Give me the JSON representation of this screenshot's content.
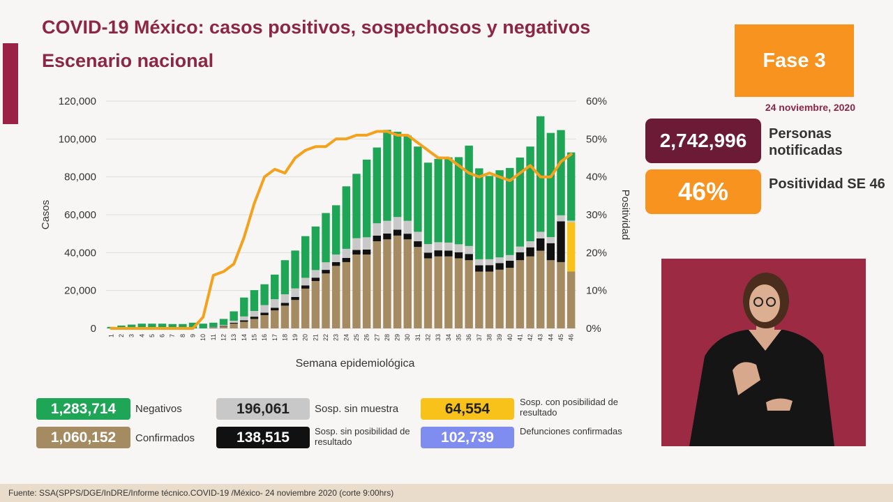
{
  "header": {
    "title": "COVID-19 México: casos positivos, sospechosos y negativos",
    "subtitle": "Escenario nacional",
    "phase": "Fase 3",
    "date": "24 noviembre, 2020"
  },
  "stats": {
    "notified_value": "2,742,996",
    "notified_label": "Personas notificadas",
    "positivity_value": "46%",
    "positivity_label": "Positividad SE 46"
  },
  "legend": {
    "negativos_value": "1,283,714",
    "negativos_label": "Negativos",
    "confirmados_value": "1,060,152",
    "confirmados_label": "Confirmados",
    "sin_muestra_value": "196,061",
    "sin_muestra_label": "Sosp. sin muestra",
    "sin_posibilidad_value": "138,515",
    "sin_posibilidad_label": "Sosp. sin posibilidad de resultado",
    "con_posibilidad_value": "64,554",
    "con_posibilidad_label": "Sosp. con posibilidad de resultado",
    "defunciones_value": "102,739",
    "defunciones_label": "Defunciones confirmadas"
  },
  "footer": "Fuente: SSA(SPPS/DGE/InDRE/Informe técnico.COVID-19 /México- 24 noviembre 2020 (corte 9:00hrs)",
  "colors": {
    "confirmados": "#a58b62",
    "sin_posibilidad": "#111111",
    "sin_muestra": "#c8c8c8",
    "negativos": "#1ea556",
    "con_posibilidad": "#f9c21a",
    "defunciones": "#7f8cf0",
    "positividad": "#f4a21e",
    "title": "#8c2645"
  },
  "chart_data": {
    "type": "bar",
    "stacked": true,
    "xlabel": "Semana epidemiológica",
    "ylabel": "Casos",
    "ylabel_right": "Positividad",
    "ylim": [
      0,
      120000
    ],
    "ylim_right": [
      0,
      60
    ],
    "yticks": [
      "0",
      "20,000",
      "40,000",
      "60,000",
      "80,000",
      "100,000",
      "120,000"
    ],
    "yticks_right": [
      "0%",
      "10%",
      "20%",
      "30%",
      "40%",
      "50%",
      "60%"
    ],
    "grid": true,
    "categories": [
      "1",
      "2",
      "3",
      "4",
      "5",
      "6",
      "7",
      "8",
      "9",
      "10",
      "11",
      "12",
      "13",
      "14",
      "15",
      "16",
      "17",
      "18",
      "19",
      "20",
      "21",
      "22",
      "23",
      "24",
      "25",
      "26",
      "27",
      "28",
      "29",
      "30",
      "31",
      "32",
      "33",
      "34",
      "35",
      "36",
      "37",
      "38",
      "39",
      "40",
      "41",
      "42",
      "43",
      "44",
      "45",
      "46"
    ],
    "series": [
      {
        "name": "Confirmados",
        "values": [
          0,
          0,
          0,
          0,
          0,
          0,
          0,
          0,
          0,
          0,
          300,
          1000,
          2500,
          3500,
          5000,
          7000,
          9500,
          12000,
          15000,
          21000,
          25000,
          29000,
          33000,
          35000,
          39000,
          39000,
          46000,
          47000,
          49000,
          47000,
          43000,
          37000,
          38000,
          38000,
          37000,
          36000,
          30000,
          30000,
          31000,
          32000,
          36000,
          38000,
          41000,
          36000,
          35000,
          30000
        ]
      },
      {
        "name": "Sosp. sin posibilidad de resultado",
        "values": [
          0,
          0,
          0,
          0,
          0,
          0,
          0,
          0,
          0,
          0,
          200,
          300,
          500,
          800,
          1200,
          1300,
          1400,
          1500,
          1600,
          1700,
          1800,
          1900,
          2000,
          2200,
          2400,
          2600,
          3000,
          3100,
          3100,
          3000,
          3000,
          3000,
          3200,
          3100,
          3200,
          3300,
          3300,
          3400,
          3500,
          3700,
          4200,
          4800,
          6500,
          9000,
          21500,
          0
        ]
      },
      {
        "name": "Sosp. con posibilidad de resultado",
        "values": [
          0,
          0,
          0,
          0,
          0,
          0,
          0,
          0,
          0,
          0,
          0,
          0,
          0,
          0,
          0,
          0,
          0,
          0,
          0,
          0,
          0,
          0,
          0,
          0,
          0,
          0,
          0,
          0,
          0,
          0,
          0,
          0,
          0,
          0,
          0,
          0,
          0,
          0,
          0,
          0,
          0,
          0,
          0,
          0,
          0,
          26000
        ]
      },
      {
        "name": "Sosp. sin muestra",
        "values": [
          0,
          0,
          0,
          0,
          0,
          0,
          0,
          0,
          0,
          0,
          200,
          500,
          1000,
          2000,
          3000,
          4000,
          4500,
          4500,
          4500,
          4000,
          4000,
          4000,
          4000,
          4800,
          6200,
          6500,
          6500,
          6700,
          6700,
          6800,
          5000,
          4500,
          4300,
          4200,
          4200,
          4200,
          3200,
          3100,
          3000,
          3000,
          3000,
          3200,
          3500,
          3200,
          3200,
          900
        ]
      },
      {
        "name": "Negativos",
        "values": [
          800,
          1500,
          2000,
          2500,
          2500,
          2500,
          2300,
          2300,
          3000,
          2500,
          2300,
          3200,
          5000,
          10000,
          11000,
          11000,
          13000,
          18000,
          20000,
          22000,
          23000,
          26000,
          26000,
          33000,
          34000,
          41000,
          40000,
          48000,
          45000,
          45000,
          45000,
          43000,
          44000,
          45000,
          46000,
          53000,
          48000,
          44000,
          46000,
          46000,
          47000,
          50000,
          61000,
          55000,
          45000,
          36000
        ]
      }
    ],
    "positividad": [
      0,
      0,
      0,
      0,
      0,
      0,
      0,
      0,
      0,
      3,
      14,
      15,
      17,
      24,
      33,
      40,
      42,
      41,
      45,
      47,
      48,
      48,
      50,
      50,
      51,
      51,
      52,
      52,
      51,
      51,
      49,
      47,
      45,
      45,
      43,
      41,
      40,
      41,
      40,
      39,
      41,
      43,
      40,
      40,
      44,
      46
    ]
  }
}
